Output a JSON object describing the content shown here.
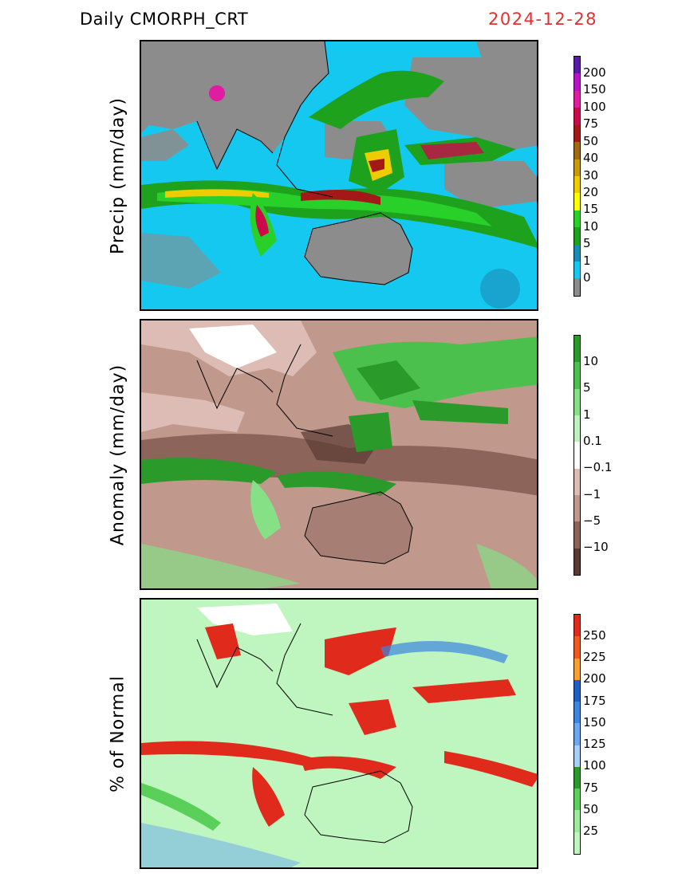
{
  "header": {
    "title": "Daily CMORPH_CRT",
    "date": "2024-12-28"
  },
  "panels": [
    {
      "id": "precip",
      "ylabel": "Precip (mm/day)",
      "colorbar": {
        "labels": [
          "200",
          "150",
          "100",
          "75",
          "50",
          "40",
          "30",
          "20",
          "15",
          "10",
          "5",
          "1",
          "0"
        ],
        "colors": [
          "#5a1aa8",
          "#b614c8",
          "#e01ca0",
          "#cc0a4a",
          "#a41818",
          "#a06a10",
          "#c89a0c",
          "#eecc00",
          "#ffff00",
          "#2ad02a",
          "#1ea21e",
          "#1a8cb8",
          "#14c8f0",
          "#8c8c8c"
        ]
      }
    },
    {
      "id": "anomaly",
      "ylabel": "Anomaly (mm/day)",
      "colorbar": {
        "labels": [
          "10",
          "5",
          "1",
          "0.1",
          "−0.1",
          "−1",
          "−5",
          "−10"
        ],
        "colors": [
          "#2a9a2a",
          "#4cc04c",
          "#86e086",
          "#bff0bf",
          "#ffffff",
          "#dcbcb4",
          "#c0988c",
          "#8c645a",
          "#5a3a32"
        ]
      }
    },
    {
      "id": "percent",
      "ylabel": "% of Normal",
      "colorbar": {
        "labels": [
          "250",
          "225",
          "200",
          "175",
          "150",
          "125",
          "100",
          "75",
          "50",
          "25"
        ],
        "colors": [
          "#e02a1c",
          "#f05a1a",
          "#f5a030",
          "#1e60c8",
          "#3a86e0",
          "#6aa8f0",
          "#a8cdf7",
          "#2a9a2a",
          "#5acf5a",
          "#9eeb9e",
          "#bff5bf"
        ]
      }
    }
  ]
}
